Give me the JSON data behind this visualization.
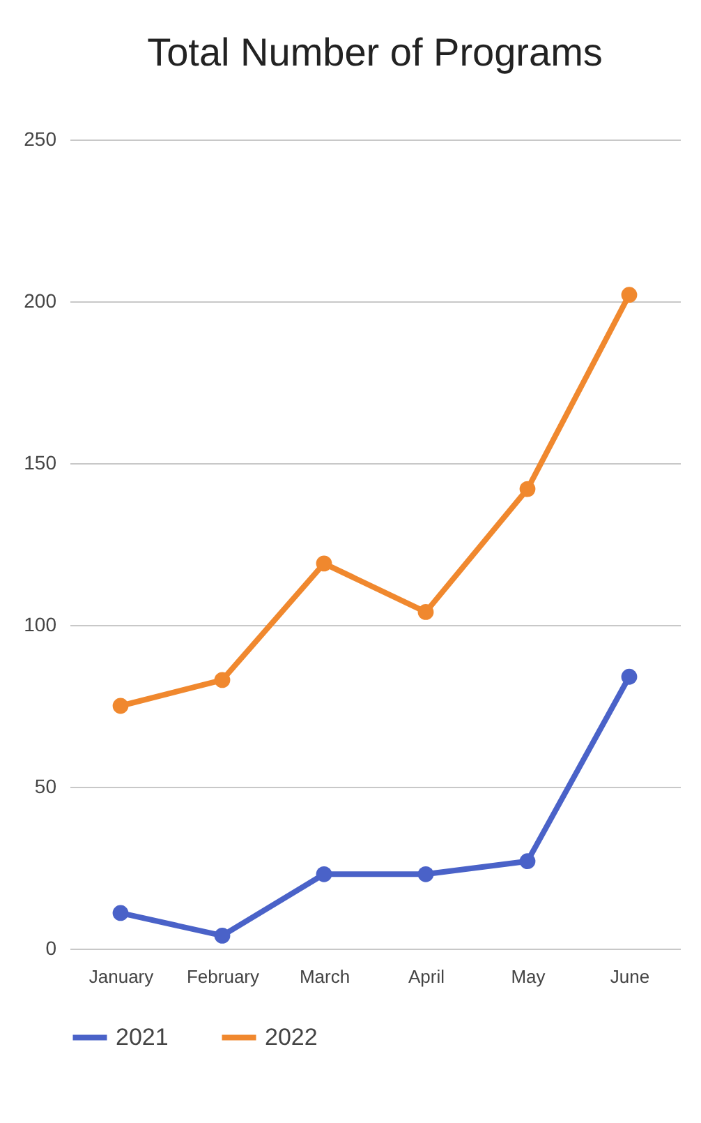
{
  "chart_data": {
    "type": "line",
    "title": "Total Number of Programs",
    "categories": [
      "January",
      "February",
      "March",
      "April",
      "May",
      "June"
    ],
    "series": [
      {
        "name": "2021",
        "color": "#4a62c8",
        "values": [
          11,
          4,
          23,
          23,
          27,
          84
        ]
      },
      {
        "name": "2022",
        "color": "#f0882e",
        "values": [
          75,
          83,
          119,
          104,
          142,
          202
        ]
      }
    ],
    "ylim": [
      0,
      250
    ],
    "yticks": [
      0,
      50,
      100,
      150,
      200,
      250
    ],
    "grid": "y",
    "legend": "bottom",
    "marker": "circle"
  }
}
